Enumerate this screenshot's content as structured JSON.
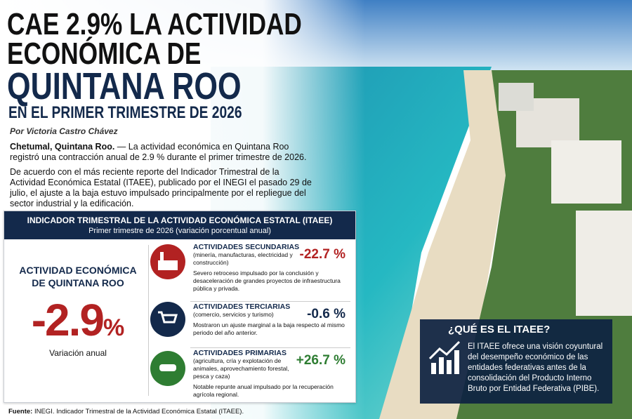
{
  "header": {
    "title_line1": "CAE 2.9% LA ACTIVIDAD",
    "title_line2": "ECONÓMICA DE",
    "title_line3": "QUINTANA ROO",
    "subtitle": "EN EL PRIMER TRIMESTRE DE 2026",
    "byline": "Por Victoria Castro Chávez"
  },
  "body": {
    "p1_lead": "Chetumal, Quintana Roo.",
    "p1_text": "— La actividad económica en Quintana Roo registró una contracción anual de 2.9 % durante el primer trimestre de 2026.",
    "p2": "De acuerdo con el más reciente reporte del Indicador Trimestral de la Actividad Económica Estatal (ITAEE), publicado por el INEGI el pasado 29 de julio, el ajuste a la baja estuvo impulsado principalmente por el repliegue del sector industrial y la edificación."
  },
  "panel": {
    "title": "INDICADOR TRIMESTRAL DE LA ACTIVIDAD ECONÓMICA ESTATAL (ITAEE)",
    "subtitle": "Primer trimestre de 2026 (variación porcentual anual)",
    "main": {
      "label": "ACTIVIDAD ECONÓMICA DE QUINTANA ROO",
      "value": "-2.9",
      "unit": "%",
      "caption": "Variación anual"
    },
    "sectors": [
      {
        "name": "ACTIVIDADES SECUNDARIAS",
        "detail": "(minería, manufacturas, electricidad y construcción)",
        "value": "-22.7 %",
        "description": "Severo retroceso impulsado por la conclusión y desaceleración de grandes proyectos de infraestructura pública y privada."
      },
      {
        "name": "ACTIVIDADES TERCIARIAS",
        "detail": "(comercio, servicios y turismo)",
        "value": "-0.6 %",
        "description": "Mostraron un ajuste marginal a la baja respecto al mismo periodo del año anterior."
      },
      {
        "name": "ACTIVIDADES PRIMARIAS",
        "detail": "(agricultura, cría y explotación de animales, aprovechamiento forestal, pesca y caza)",
        "value": "+26.7 %",
        "description": "Notable repunte anual impulsado por la recuperación agrícola regional."
      }
    ]
  },
  "info_box": {
    "title": "¿QUÉ ES EL ITAEE?",
    "text": "El ITAEE ofrece una visión coyuntural del desempeño económico de las entidades federativas antes de la consolidación del Producto Interno Bruto por Entidad Federativa (PIBE)."
  },
  "footer": {
    "source_label": "Fuente:",
    "source": "INEGI. Indicador Trimestral de la Actividad Económica Estatal (ITAEE)."
  }
}
